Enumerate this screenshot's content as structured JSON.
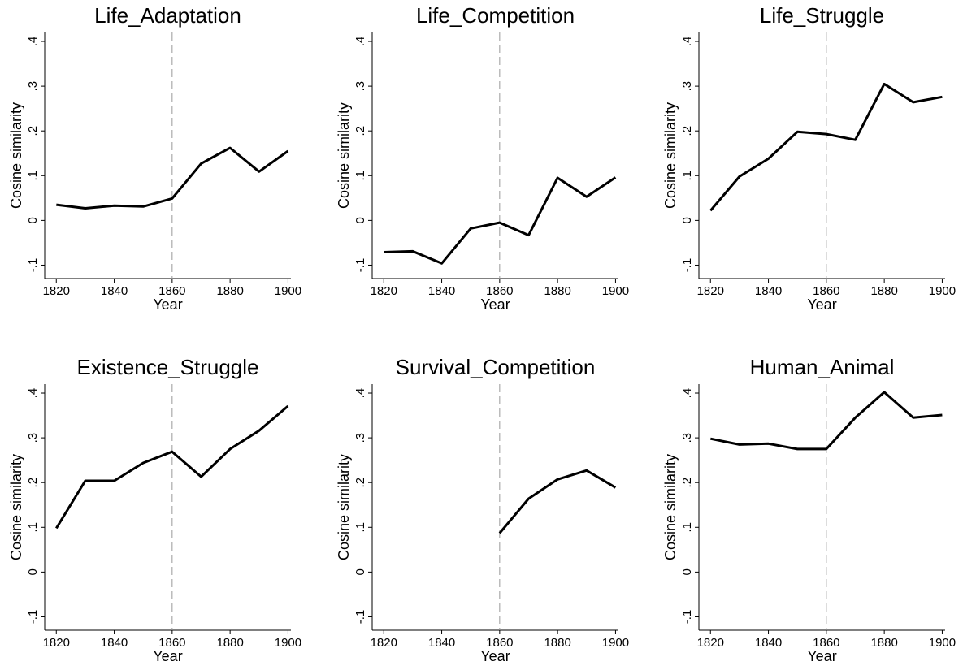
{
  "chart_data": [
    {
      "type": "line",
      "title": "Life_Adaptation",
      "x_label": "Year",
      "y_label": "Cosine similarity",
      "x": [
        1820,
        1830,
        1840,
        1850,
        1860,
        1870,
        1880,
        1890,
        1900
      ],
      "values": [
        0.035,
        0.027,
        0.033,
        0.031,
        0.049,
        0.127,
        0.162,
        0.109,
        0.155
      ],
      "color": "#000000",
      "xlim": [
        1816,
        1901
      ],
      "ylim": [
        -0.13,
        0.42
      ],
      "xticks": [
        1820,
        1840,
        1860,
        1880,
        1900
      ],
      "yticks": [
        {
          "value": -0.1,
          "label": "-.1"
        },
        0,
        {
          "value": 0.1,
          "label": ".1"
        },
        {
          "value": 0.2,
          "label": ".2"
        },
        {
          "value": 0.3,
          "label": ".3"
        },
        {
          "value": 0.4,
          "label": ".4"
        }
      ],
      "vline": 1860
    },
    {
      "type": "line",
      "title": "Life_Competition",
      "x_label": "Year",
      "y_label": "Cosine similarity",
      "x": [
        1820,
        1830,
        1840,
        1850,
        1860,
        1870,
        1880,
        1890,
        1900
      ],
      "values": [
        -0.071,
        -0.069,
        -0.096,
        -0.018,
        -0.005,
        -0.033,
        0.095,
        0.053,
        0.096
      ],
      "color": "#000000",
      "xlim": [
        1816,
        1901
      ],
      "ylim": [
        -0.13,
        0.42
      ],
      "xticks": [
        1820,
        1840,
        1860,
        1880,
        1900
      ],
      "yticks": [
        {
          "value": -0.1,
          "label": "-.1"
        },
        0,
        {
          "value": 0.1,
          "label": ".1"
        },
        {
          "value": 0.2,
          "label": ".2"
        },
        {
          "value": 0.3,
          "label": ".3"
        },
        {
          "value": 0.4,
          "label": ".4"
        }
      ],
      "vline": 1860
    },
    {
      "type": "line",
      "title": "Life_Struggle",
      "x_label": "Year",
      "y_label": "Cosine similarity",
      "x": [
        1820,
        1830,
        1840,
        1850,
        1860,
        1870,
        1880,
        1890,
        1900
      ],
      "values": [
        0.022,
        0.098,
        0.138,
        0.198,
        0.193,
        0.18,
        0.305,
        0.264,
        0.276
      ],
      "color": "#000000",
      "xlim": [
        1816,
        1901
      ],
      "ylim": [
        -0.13,
        0.42
      ],
      "xticks": [
        1820,
        1840,
        1860,
        1880,
        1900
      ],
      "yticks": [
        {
          "value": -0.1,
          "label": "-.1"
        },
        0,
        {
          "value": 0.1,
          "label": ".1"
        },
        {
          "value": 0.2,
          "label": ".2"
        },
        {
          "value": 0.3,
          "label": ".3"
        },
        {
          "value": 0.4,
          "label": ".4"
        }
      ],
      "vline": 1860
    },
    {
      "type": "line",
      "title": "Existence_Struggle",
      "x_label": "Year",
      "y_label": "Cosine similarity",
      "x": [
        1820,
        1830,
        1840,
        1850,
        1860,
        1870,
        1880,
        1890,
        1900
      ],
      "values": [
        0.098,
        0.204,
        0.204,
        0.244,
        0.269,
        0.213,
        0.275,
        0.316,
        0.371
      ],
      "color": "#000000",
      "xlim": [
        1816,
        1901
      ],
      "ylim": [
        -0.13,
        0.42
      ],
      "xticks": [
        1820,
        1840,
        1860,
        1880,
        1900
      ],
      "yticks": [
        {
          "value": -0.1,
          "label": "-.1"
        },
        0,
        {
          "value": 0.1,
          "label": ".1"
        },
        {
          "value": 0.2,
          "label": ".2"
        },
        {
          "value": 0.3,
          "label": ".3"
        },
        {
          "value": 0.4,
          "label": ".4"
        }
      ],
      "vline": 1860
    },
    {
      "type": "line",
      "title": "Survival_Competition",
      "x_label": "Year",
      "y_label": "Cosine similarity",
      "x": [
        1820,
        1830,
        1840,
        1850,
        1860,
        1870,
        1880,
        1890,
        1900
      ],
      "values": [
        null,
        null,
        null,
        null,
        0.087,
        0.164,
        0.207,
        0.227,
        0.189
      ],
      "color": "#000000",
      "xlim": [
        1816,
        1901
      ],
      "ylim": [
        -0.13,
        0.42
      ],
      "xticks": [
        1820,
        1840,
        1860,
        1880,
        1900
      ],
      "yticks": [
        {
          "value": -0.1,
          "label": "-.1"
        },
        0,
        {
          "value": 0.1,
          "label": ".1"
        },
        {
          "value": 0.2,
          "label": ".2"
        },
        {
          "value": 0.3,
          "label": ".3"
        },
        {
          "value": 0.4,
          "label": ".4"
        }
      ],
      "vline": 1860
    },
    {
      "type": "line",
      "title": "Human_Animal",
      "x_label": "Year",
      "y_label": "Cosine similarity",
      "x": [
        1820,
        1830,
        1840,
        1850,
        1860,
        1870,
        1880,
        1890,
        1900
      ],
      "values": [
        0.298,
        0.285,
        0.287,
        0.275,
        0.275,
        0.345,
        0.402,
        0.345,
        0.351
      ],
      "color": "#000000",
      "xlim": [
        1816,
        1901
      ],
      "ylim": [
        -0.13,
        0.42
      ],
      "xticks": [
        1820,
        1840,
        1860,
        1880,
        1900
      ],
      "yticks": [
        {
          "value": -0.1,
          "label": "-.1"
        },
        0,
        {
          "value": 0.1,
          "label": ".1"
        },
        {
          "value": 0.2,
          "label": ".2"
        },
        {
          "value": 0.3,
          "label": ".3"
        },
        {
          "value": 0.4,
          "label": ".4"
        }
      ],
      "vline": 1860
    }
  ]
}
